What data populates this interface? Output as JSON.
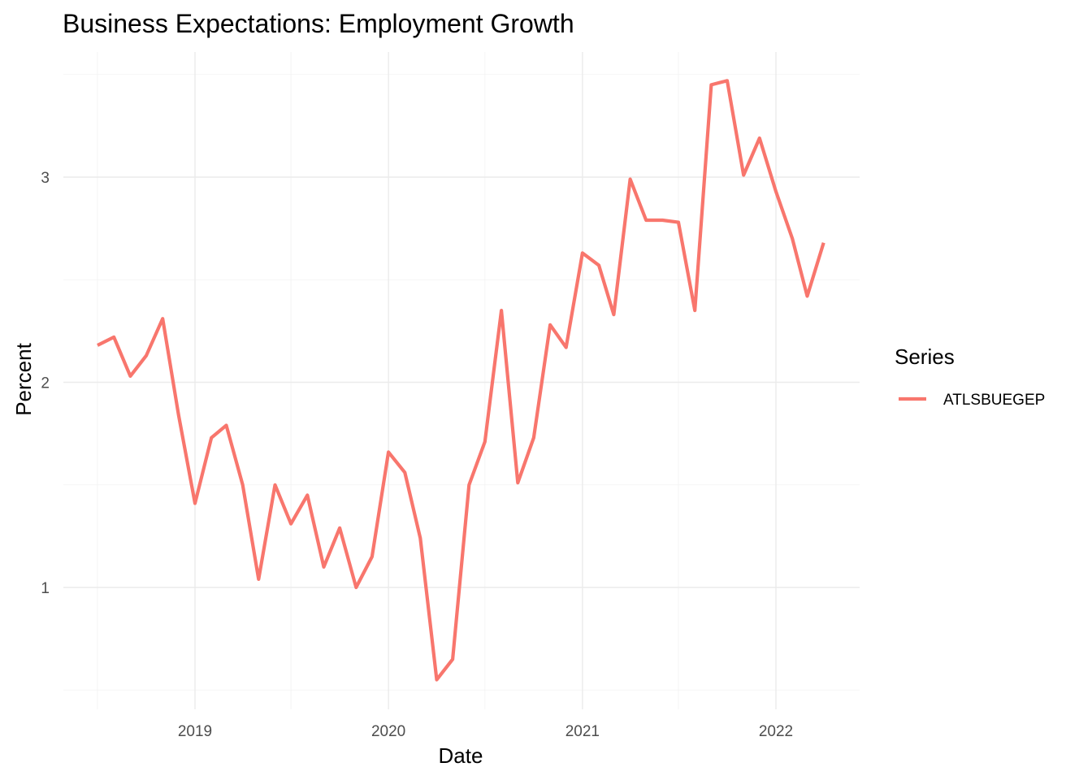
{
  "chart_data": {
    "type": "line",
    "title": "Business Expectations: Employment Growth",
    "xlabel": "Date",
    "ylabel": "Percent",
    "x_type": "date",
    "xlim": [
      "2018-07-01",
      "2022-04-01"
    ],
    "ylim": [
      0.5,
      3.5
    ],
    "x_ticks": [
      "2019",
      "2020",
      "2021",
      "2022"
    ],
    "x_tick_dates": [
      "2019-01-01",
      "2020-01-01",
      "2021-01-01",
      "2022-01-01"
    ],
    "y_ticks": [
      1,
      2,
      3
    ],
    "grid": true,
    "legend": {
      "title": "Series",
      "position": "right"
    },
    "series": [
      {
        "name": "ATLSBUEGEP",
        "color": "#f8766d",
        "x": [
          "2018-07-01",
          "2018-08-01",
          "2018-09-01",
          "2018-10-01",
          "2018-11-01",
          "2018-12-01",
          "2019-01-01",
          "2019-02-01",
          "2019-03-01",
          "2019-04-01",
          "2019-05-01",
          "2019-06-01",
          "2019-07-01",
          "2019-08-01",
          "2019-09-01",
          "2019-10-01",
          "2019-11-01",
          "2019-12-01",
          "2020-01-01",
          "2020-02-01",
          "2020-03-01",
          "2020-04-01",
          "2020-05-01",
          "2020-06-01",
          "2020-07-01",
          "2020-08-01",
          "2020-09-01",
          "2020-10-01",
          "2020-11-01",
          "2020-12-01",
          "2021-01-01",
          "2021-02-01",
          "2021-03-01",
          "2021-04-01",
          "2021-05-01",
          "2021-06-01",
          "2021-07-01",
          "2021-08-01",
          "2021-09-01",
          "2021-10-01",
          "2021-11-01",
          "2021-12-01",
          "2022-01-01",
          "2022-02-01",
          "2022-03-01",
          "2022-04-01"
        ],
        "values": [
          2.18,
          2.22,
          2.03,
          2.13,
          2.31,
          1.84,
          1.41,
          1.73,
          1.79,
          1.5,
          1.04,
          1.5,
          1.31,
          1.45,
          1.1,
          1.29,
          1.0,
          1.15,
          1.66,
          1.56,
          1.24,
          0.55,
          0.65,
          1.5,
          1.71,
          2.35,
          1.51,
          1.73,
          2.28,
          2.17,
          2.63,
          2.57,
          2.33,
          2.99,
          2.79,
          2.79,
          2.78,
          2.35,
          3.45,
          3.47,
          3.01,
          3.19,
          2.93,
          2.7,
          2.42,
          2.68
        ]
      }
    ]
  }
}
